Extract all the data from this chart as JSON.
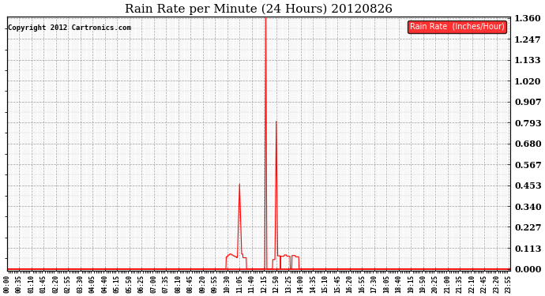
{
  "title": "Rain Rate per Minute (24 Hours) 20120826",
  "copyright_text": "Copyright 2012 Cartronics.com",
  "legend_label": "Rain Rate  (Inches/Hour)",
  "legend_bg": "#ff0000",
  "legend_text_color": "#ffffff",
  "line_color": "#ff0000",
  "background_color": "#ffffff",
  "plot_bg": "#ffffff",
  "grid_color": "#888888",
  "yticks": [
    0.0,
    0.113,
    0.227,
    0.34,
    0.453,
    0.567,
    0.68,
    0.793,
    0.907,
    1.02,
    1.133,
    1.247,
    1.36
  ],
  "ymax": 1.36,
  "total_minutes": 1440,
  "tick_interval_minutes": 35,
  "figwidth": 6.9,
  "figheight": 3.75,
  "dpi": 100
}
